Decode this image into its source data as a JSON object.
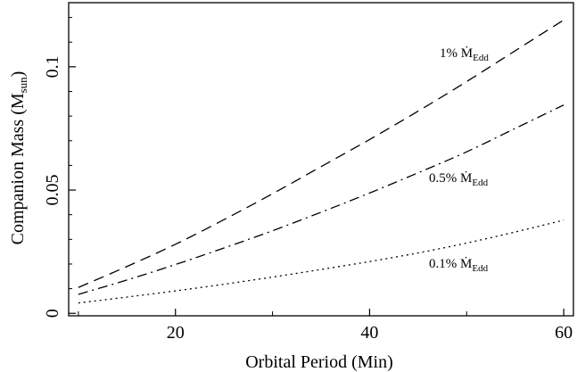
{
  "chart_data": {
    "type": "line",
    "title": "",
    "xlabel": "Orbital Period (Min)",
    "ylabel": {
      "main": "Companion Mass (M",
      "sub": "sun",
      "close": ")"
    },
    "xlim": [
      9,
      61
    ],
    "ylim": [
      -0.001,
      0.126
    ],
    "xticks": [
      20,
      40,
      60
    ],
    "yticks": [
      0,
      0.05,
      0.1
    ],
    "xtick_labels": [
      "20",
      "40",
      "60"
    ],
    "ytick_labels": [
      "0",
      "0.05",
      "0.1"
    ],
    "grid": false,
    "series": [
      {
        "label": {
          "prefix": "1% ",
          "symbol": "Ṁ",
          "sub": "Edd"
        },
        "style": "dashed",
        "x": [
          10,
          15,
          20,
          25,
          30,
          35,
          40,
          45,
          50,
          55,
          60
        ],
        "y": [
          0.0105,
          0.019,
          0.028,
          0.038,
          0.0485,
          0.0595,
          0.0705,
          0.082,
          0.094,
          0.1065,
          0.119
        ]
      },
      {
        "label": {
          "prefix": "0.5% ",
          "symbol": "Ṁ",
          "sub": "Edd"
        },
        "style": "dashdot",
        "x": [
          10,
          15,
          20,
          25,
          30,
          35,
          40,
          45,
          50,
          55,
          60
        ],
        "y": [
          0.0077,
          0.0135,
          0.0198,
          0.0265,
          0.0335,
          0.041,
          0.0488,
          0.057,
          0.0655,
          0.075,
          0.0845
        ]
      },
      {
        "label": {
          "prefix": "0.1% ",
          "symbol": "Ṁ",
          "sub": "Edd"
        },
        "style": "dotted",
        "x": [
          10,
          15,
          20,
          25,
          30,
          35,
          40,
          45,
          50,
          55,
          60
        ],
        "y": [
          0.0042,
          0.0066,
          0.0091,
          0.0118,
          0.0147,
          0.0178,
          0.021,
          0.0245,
          0.0285,
          0.033,
          0.0378
        ]
      }
    ]
  }
}
